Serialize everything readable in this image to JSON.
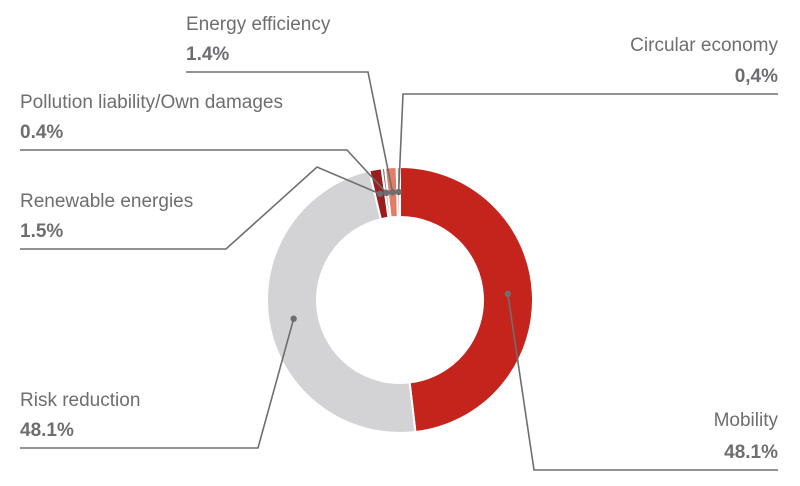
{
  "chart_data": {
    "type": "pie",
    "style": "donut",
    "slices": [
      {
        "label": "Mobility",
        "value_text": "48.1%",
        "value": 48.1,
        "color": "#c4241c"
      },
      {
        "label": "Risk reduction",
        "value_text": "48.1%",
        "value": 48.1,
        "color": "#d3d3d5"
      },
      {
        "label": "Renewable energies",
        "value_text": "1.5%",
        "value": 1.5,
        "color": "#9a1c1c"
      },
      {
        "label": "Pollution liability/Own damages",
        "value_text": "0.4%",
        "value": 0.4,
        "color": "#7a7a7c"
      },
      {
        "label": "Energy efficiency",
        "value_text": "1.4%",
        "value": 1.4,
        "color": "#e27d67"
      },
      {
        "label": "Circular economy",
        "value_text": "0,4%",
        "value": 0.4,
        "color": "#a6a6a8"
      }
    ],
    "separator_color": "#ffffff",
    "leader_color": "#6d6e70"
  }
}
